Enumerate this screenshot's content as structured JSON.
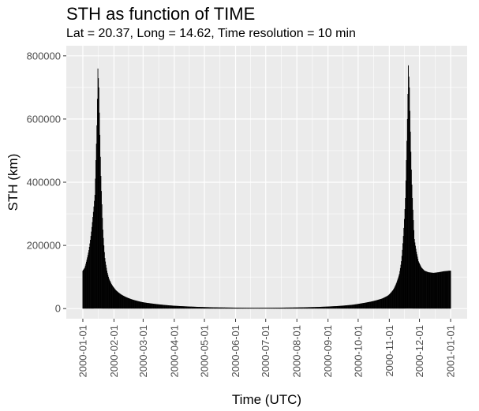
{
  "chart_data": {
    "type": "bar",
    "title": "STH as function of TIME",
    "subtitle": "Lat = 20.37, Long = 14.62, Time resolution = 10 min",
    "xlabel": "Time (UTC)",
    "ylabel": "STH (km)",
    "xlim": [
      "2000-01-01",
      "2001-01-01"
    ],
    "ylim": [
      0,
      800000
    ],
    "yticks": [
      0,
      200000,
      400000,
      600000,
      800000
    ],
    "ytick_labels": [
      "0",
      "200000",
      "400000",
      "600000",
      "800000"
    ],
    "xticks": [
      "2000-01-01",
      "2000-02-01",
      "2000-03-01",
      "2000-04-01",
      "2000-05-01",
      "2000-06-01",
      "2000-07-01",
      "2000-08-01",
      "2000-09-01",
      "2000-10-01",
      "2000-11-01",
      "2000-12-01",
      "2001-01-01"
    ],
    "grid": true,
    "background": "#ebebeb",
    "bar_color": "#000000",
    "points": [
      [
        "2000-01-01",
        120000
      ],
      [
        "2000-01-03",
        130000
      ],
      [
        "2000-01-05",
        155000
      ],
      [
        "2000-01-07",
        185000
      ],
      [
        "2000-01-09",
        230000
      ],
      [
        "2000-01-11",
        290000
      ],
      [
        "2000-01-13",
        360000
      ],
      [
        "2000-01-14",
        470000
      ],
      [
        "2000-01-15",
        580000
      ],
      [
        "2000-01-16",
        760000
      ],
      [
        "2000-01-17",
        700000
      ],
      [
        "2000-01-18",
        550000
      ],
      [
        "2000-01-19",
        420000
      ],
      [
        "2000-01-20",
        330000
      ],
      [
        "2000-01-21",
        250000
      ],
      [
        "2000-01-22",
        200000
      ],
      [
        "2000-01-23",
        160000
      ],
      [
        "2000-01-25",
        120000
      ],
      [
        "2000-01-27",
        95000
      ],
      [
        "2000-01-30",
        75000
      ],
      [
        "2000-02-03",
        58000
      ],
      [
        "2000-02-08",
        45000
      ],
      [
        "2000-02-14",
        35000
      ],
      [
        "2000-02-20",
        28000
      ],
      [
        "2000-03-01",
        20000
      ],
      [
        "2000-03-15",
        14000
      ],
      [
        "2000-04-01",
        9000
      ],
      [
        "2000-04-20",
        6000
      ],
      [
        "2000-05-10",
        4000
      ],
      [
        "2000-06-01",
        3000
      ],
      [
        "2000-06-20",
        2500
      ],
      [
        "2000-07-10",
        2800
      ],
      [
        "2000-07-30",
        3500
      ],
      [
        "2000-08-20",
        5000
      ],
      [
        "2000-09-10",
        8000
      ],
      [
        "2000-09-25",
        12000
      ],
      [
        "2000-10-05",
        17000
      ],
      [
        "2000-10-15",
        23000
      ],
      [
        "2000-10-25",
        32000
      ],
      [
        "2000-10-31",
        42000
      ],
      [
        "2000-11-05",
        60000
      ],
      [
        "2000-11-08",
        80000
      ],
      [
        "2000-11-11",
        110000
      ],
      [
        "2000-11-13",
        150000
      ],
      [
        "2000-11-15",
        230000
      ],
      [
        "2000-11-17",
        350000
      ],
      [
        "2000-11-18",
        470000
      ],
      [
        "2000-11-19",
        600000
      ],
      [
        "2000-11-20",
        770000
      ],
      [
        "2000-11-21",
        700000
      ],
      [
        "2000-11-22",
        560000
      ],
      [
        "2000-11-23",
        440000
      ],
      [
        "2000-11-24",
        350000
      ],
      [
        "2000-11-25",
        280000
      ],
      [
        "2000-11-26",
        220000
      ],
      [
        "2000-11-28",
        180000
      ],
      [
        "2000-11-30",
        150000
      ],
      [
        "2000-12-03",
        130000
      ],
      [
        "2000-12-06",
        120000
      ],
      [
        "2000-12-10",
        115000
      ],
      [
        "2000-12-15",
        113000
      ],
      [
        "2000-12-20",
        115000
      ],
      [
        "2000-12-25",
        118000
      ],
      [
        "2000-12-31",
        120000
      ]
    ]
  }
}
